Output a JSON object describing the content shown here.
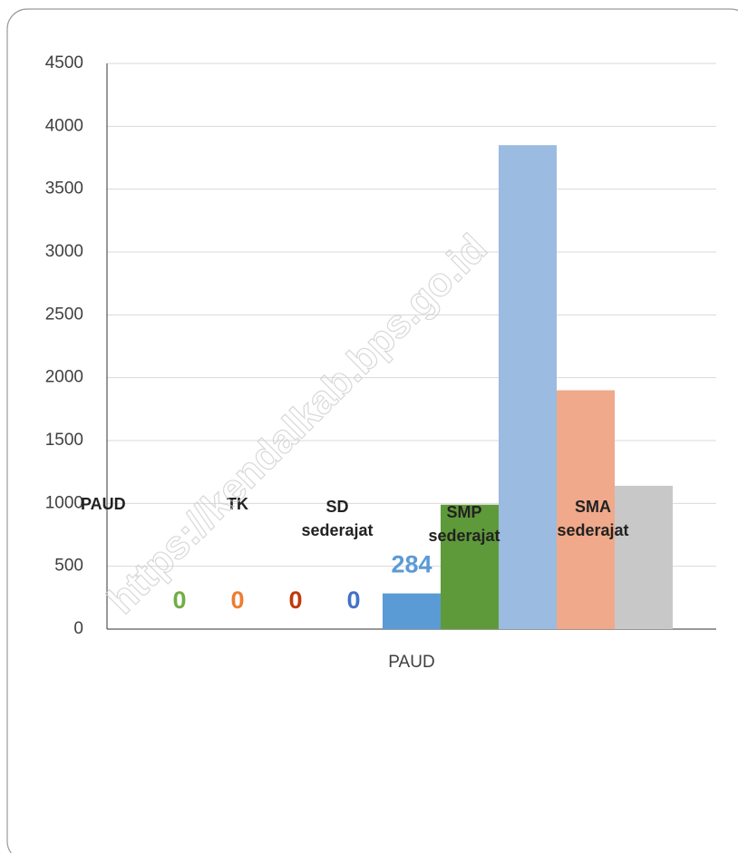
{
  "chart_data": {
    "type": "bar",
    "categories": [
      "PAUD"
    ],
    "series": [
      {
        "color": "#70ad47",
        "values": [
          0
        ],
        "labels": true
      },
      {
        "color": "#ed7d31",
        "values": [
          0
        ],
        "labels": true
      },
      {
        "color": "#c0390b",
        "values": [
          0
        ],
        "labels": true
      },
      {
        "color": "#4472c4",
        "values": [
          0
        ],
        "labels": true
      },
      {
        "color": "#5b9bd5",
        "values": [
          284
        ],
        "labels": true
      },
      {
        "color": "#5f9a3a",
        "values": [
          990
        ],
        "labels": false
      },
      {
        "color": "#9bbbe0",
        "values": [
          3850
        ],
        "labels": false
      },
      {
        "color": "#f0a98a",
        "values": [
          1900
        ],
        "labels": false
      },
      {
        "color": "#c8c8c8",
        "values": [
          1140
        ],
        "labels": false
      }
    ],
    "annotations": [
      "PAUD",
      "TK",
      "SD sederajat",
      "SMP sederajat",
      "SMA sederajat"
    ],
    "watermark": "https://kendalkab.bps.go.id",
    "ylim": [
      0,
      4500
    ],
    "yticks": [
      0,
      500,
      1000,
      1500,
      2000,
      2500,
      3000,
      3500,
      4000,
      4500
    ],
    "grid": true
  }
}
